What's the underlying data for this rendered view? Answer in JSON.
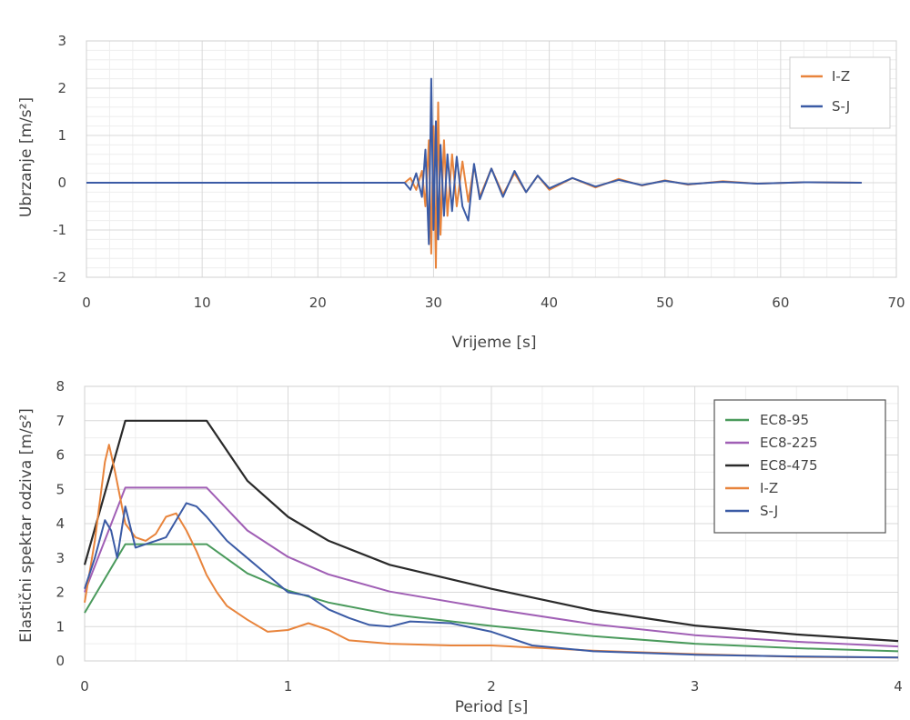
{
  "chart_data": [
    {
      "type": "line",
      "xlabel": "Vrijeme [s]",
      "ylabel": "Ubrzanje [m/s²]",
      "xlim": [
        0,
        70
      ],
      "ylim": [
        -2,
        3
      ],
      "xticks": [
        0,
        10,
        20,
        30,
        40,
        50,
        60,
        70
      ],
      "yticks": [
        -2,
        -1,
        0,
        1,
        2,
        3
      ],
      "grid": true,
      "legend_position": "top-right",
      "series": [
        {
          "name": "I-Z",
          "color": "#e8843c",
          "x": [
            0,
            27.5,
            28,
            28.5,
            29,
            29.3,
            29.6,
            29.8,
            30,
            30.2,
            30.4,
            30.6,
            30.9,
            31.2,
            31.6,
            32,
            32.5,
            33,
            33.5,
            34,
            35,
            36,
            37,
            38,
            39,
            40,
            42,
            44,
            46,
            48,
            50,
            52,
            55,
            58,
            62,
            67
          ],
          "y": [
            0,
            0,
            0.1,
            -0.15,
            0.25,
            -0.5,
            0.9,
            -1.5,
            1.2,
            -1.8,
            1.7,
            -1.1,
            0.9,
            -0.7,
            0.6,
            -0.5,
            0.45,
            -0.4,
            0.35,
            -0.3,
            0.3,
            -0.25,
            0.2,
            -0.2,
            0.15,
            -0.15,
            0.1,
            -0.1,
            0.08,
            -0.06,
            0.05,
            -0.04,
            0.03,
            -0.02,
            0.01,
            0
          ]
        },
        {
          "name": "S-J",
          "color": "#3b5ba5",
          "x": [
            0,
            27.5,
            28,
            28.5,
            29,
            29.3,
            29.6,
            29.8,
            30,
            30.2,
            30.4,
            30.6,
            30.9,
            31.2,
            31.6,
            32,
            32.5,
            33,
            33.5,
            34,
            35,
            36,
            37,
            38,
            39,
            40,
            42,
            44,
            46,
            48,
            50,
            52,
            55,
            58,
            62,
            67
          ],
          "y": [
            0,
            0,
            -0.15,
            0.2,
            -0.3,
            0.7,
            -1.3,
            2.2,
            -1.0,
            1.3,
            -1.2,
            0.8,
            -0.7,
            0.6,
            -0.6,
            0.55,
            -0.5,
            -0.8,
            0.4,
            -0.35,
            0.3,
            -0.3,
            0.25,
            -0.2,
            0.15,
            -0.12,
            0.1,
            -0.08,
            0.06,
            -0.05,
            0.04,
            -0.03,
            0.02,
            -0.02,
            0.01,
            0
          ]
        }
      ]
    },
    {
      "type": "line",
      "xlabel": "Period [s]",
      "ylabel": "Elastični spektar odziva [m/s²]",
      "xlim": [
        0,
        4
      ],
      "ylim": [
        0,
        8
      ],
      "xticks": [
        0,
        1,
        2,
        3,
        4
      ],
      "yticks": [
        0,
        1,
        2,
        3,
        4,
        5,
        6,
        7,
        8
      ],
      "grid": true,
      "legend_position": "top-right",
      "series": [
        {
          "name": "EC8-95",
          "color": "#4a9a5c",
          "x": [
            0,
            0.2,
            0.6,
            0.8,
            1.0,
            1.2,
            1.5,
            2.0,
            2.5,
            3.0,
            3.5,
            4.0
          ],
          "y": [
            1.4,
            3.4,
            3.4,
            2.55,
            2.05,
            1.7,
            1.36,
            1.02,
            0.72,
            0.5,
            0.37,
            0.28
          ]
        },
        {
          "name": "EC8-225",
          "color": "#a05fb5",
          "x": [
            0,
            0.2,
            0.6,
            0.8,
            1.0,
            1.2,
            1.5,
            2.0,
            2.5,
            3.0,
            3.5,
            4.0
          ],
          "y": [
            2.0,
            5.05,
            5.05,
            3.8,
            3.03,
            2.52,
            2.02,
            1.52,
            1.07,
            0.75,
            0.56,
            0.42
          ]
        },
        {
          "name": "EC8-475",
          "color": "#2a2a2a",
          "x": [
            0,
            0.2,
            0.6,
            0.8,
            1.0,
            1.2,
            1.5,
            2.0,
            2.5,
            3.0,
            3.5,
            4.0
          ],
          "y": [
            2.8,
            7.0,
            7.0,
            5.25,
            4.2,
            3.5,
            2.8,
            2.1,
            1.47,
            1.03,
            0.77,
            0.58
          ]
        },
        {
          "name": "I-Z",
          "color": "#e8843c",
          "x": [
            0,
            0.05,
            0.1,
            0.12,
            0.15,
            0.2,
            0.25,
            0.3,
            0.35,
            0.4,
            0.45,
            0.5,
            0.55,
            0.6,
            0.65,
            0.7,
            0.8,
            0.9,
            1.0,
            1.1,
            1.2,
            1.3,
            1.5,
            1.8,
            2.0,
            2.5,
            3.0,
            3.5,
            4.0
          ],
          "y": [
            1.7,
            3.5,
            5.8,
            6.3,
            5.5,
            4.0,
            3.6,
            3.5,
            3.7,
            4.2,
            4.3,
            3.8,
            3.2,
            2.5,
            2.0,
            1.6,
            1.2,
            0.85,
            0.9,
            1.1,
            0.9,
            0.6,
            0.5,
            0.45,
            0.45,
            0.3,
            0.2,
            0.12,
            0.1
          ]
        },
        {
          "name": "S-J",
          "color": "#3b5ba5",
          "x": [
            0,
            0.05,
            0.1,
            0.13,
            0.16,
            0.2,
            0.25,
            0.3,
            0.35,
            0.4,
            0.45,
            0.5,
            0.55,
            0.6,
            0.7,
            0.8,
            0.9,
            1.0,
            1.1,
            1.2,
            1.3,
            1.4,
            1.5,
            1.6,
            1.8,
            2.0,
            2.2,
            2.5,
            3.0,
            3.5,
            4.0
          ],
          "y": [
            2.1,
            3.0,
            4.1,
            3.8,
            3.0,
            4.5,
            3.3,
            3.4,
            3.5,
            3.6,
            4.1,
            4.6,
            4.5,
            4.2,
            3.5,
            3.0,
            2.5,
            2.0,
            1.9,
            1.5,
            1.25,
            1.05,
            1.0,
            1.15,
            1.1,
            0.85,
            0.45,
            0.28,
            0.18,
            0.13,
            0.1
          ]
        }
      ]
    }
  ]
}
